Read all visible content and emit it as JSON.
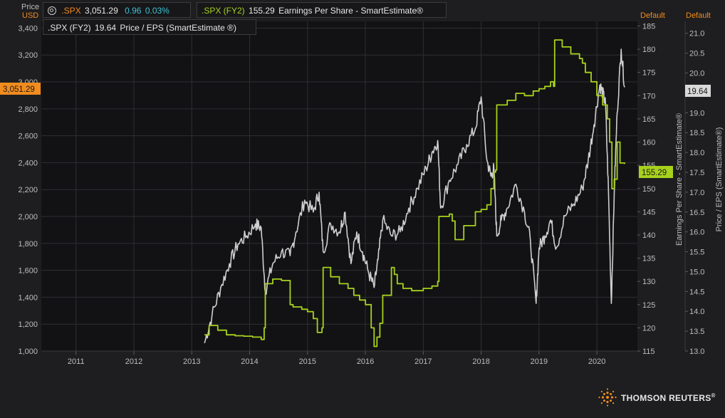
{
  "axis_header": {
    "price_label": "Price",
    "currency": "USD",
    "default_right1": "Default",
    "default_right2": "Default"
  },
  "legend": {
    "spx": {
      "symbol": ".SPX",
      "value": "3,051.29",
      "change": "0.96",
      "change_pct": "0.03%"
    },
    "eps": {
      "symbol": ".SPX (FY2)",
      "value": "155.29",
      "name": "Earnings Per Share - SmartEstimate®"
    },
    "pe": {
      "symbol": ".SPX (FY2)",
      "value": "19.64",
      "name": "Price / EPS (SmartEstimate ®)"
    }
  },
  "badges": {
    "price": "3,051.29",
    "eps": "155.29",
    "pe": "19.64"
  },
  "brand": {
    "name": "THOMSON REUTERS",
    "mark": "®"
  },
  "colors": {
    "background": "#1e1e20",
    "plot_background": "#121214",
    "price_line": "#cfcfcf",
    "eps_line": "#a7d21c",
    "accent_orange": "#f28c1e",
    "change_teal": "#3ec1d3",
    "grid": "#2f2f33"
  },
  "chart_data": {
    "type": "line",
    "title": "",
    "xlabel": "",
    "x_range": [
      2010.4,
      2020.7
    ],
    "x_ticks": [
      "2011",
      "2012",
      "2013",
      "2014",
      "2015",
      "2016",
      "2017",
      "2018",
      "2019",
      "2020"
    ],
    "grid": true,
    "legend_placement": "top-left",
    "axes": {
      "left": {
        "label": "Price",
        "unit": "USD",
        "range": [
          1000,
          3450
        ],
        "ticks": [
          "1,000",
          "1,200",
          "1,400",
          "1,600",
          "1,800",
          "2,000",
          "2,200",
          "2,400",
          "2,600",
          "2,800",
          "3,000",
          "3,200",
          "3,400"
        ]
      },
      "right1": {
        "label": "Earnings Per Share - SmartEstimate®",
        "range": [
          115,
          186
        ],
        "ticks": [
          "115",
          "120",
          "125",
          "130",
          "135",
          "140",
          "145",
          "150",
          "155",
          "160",
          "165",
          "170",
          "175",
          "180",
          "185"
        ]
      },
      "right2": {
        "label": "Price / EPS (SmartEstimate®)",
        "range": [
          13.0,
          21.3
        ],
        "ticks": [
          "13.0",
          "13.5",
          "14.0",
          "14.5",
          "15.0",
          "15.5",
          "16.0",
          "16.5",
          "17.0",
          "17.5",
          "18.0",
          "18.5",
          "19.0",
          "19.5",
          "20.0",
          "20.5",
          "21.0"
        ]
      }
    },
    "series": [
      {
        "name": ".SPX (FY2) Earnings Per Share - SmartEstimate®",
        "axis": "right1",
        "x": [
          2013.22,
          2013.3,
          2013.45,
          2013.6,
          2013.75,
          2013.9,
          2014.05,
          2014.2,
          2014.25,
          2014.27,
          2014.4,
          2014.55,
          2014.7,
          2014.75,
          2014.9,
          2015.0,
          2015.1,
          2015.17,
          2015.25,
          2015.27,
          2015.4,
          2015.55,
          2015.7,
          2015.8,
          2015.9,
          2016.0,
          2016.1,
          2016.15,
          2016.2,
          2016.25,
          2016.3,
          2016.45,
          2016.5,
          2016.55,
          2016.65,
          2016.8,
          2017.0,
          2017.15,
          2017.2,
          2017.25,
          2017.27,
          2017.45,
          2017.5,
          2017.55,
          2017.7,
          2017.9,
          2018.0,
          2018.1,
          2018.17,
          2018.22,
          2018.25,
          2018.27,
          2018.45,
          2018.6,
          2018.75,
          2018.9,
          2019.0,
          2019.1,
          2019.2,
          2019.25,
          2019.27,
          2019.4,
          2019.55,
          2019.7,
          2019.75,
          2019.8,
          2019.9,
          2020.0,
          2020.1,
          2020.18,
          2020.22,
          2020.26,
          2020.3,
          2020.35,
          2020.4,
          2020.48
        ],
        "y": [
          118.5,
          120.5,
          119.5,
          118.5,
          118.3,
          118.2,
          118.0,
          117.5,
          120.0,
          129.5,
          130.5,
          130.2,
          125.0,
          124.5,
          124.0,
          123.5,
          122.0,
          119.0,
          120.0,
          133.0,
          131.0,
          129.5,
          128.5,
          127.0,
          126.0,
          125.0,
          120.0,
          116.0,
          118.0,
          121.0,
          127.0,
          133.0,
          131.5,
          129.5,
          128.5,
          128.0,
          128.5,
          129.0,
          129.0,
          130.0,
          144.0,
          144.5,
          143.0,
          139.0,
          142.0,
          145.0,
          145.5,
          146.5,
          150.0,
          153.5,
          154.0,
          168.0,
          169.0,
          170.5,
          170.0,
          171.0,
          171.5,
          172.0,
          173.0,
          172.0,
          182.0,
          180.5,
          179.0,
          178.0,
          177.0,
          175.0,
          173.0,
          170.0,
          168.0,
          165.0,
          160.0,
          150.0,
          152.0,
          160.0,
          155.5,
          155.29
        ]
      },
      {
        "name": ".SPX (FY2) Price / EPS (SmartEstimate®)",
        "axis": "right2",
        "x": [
          2013.22,
          2013.35,
          2013.5,
          2013.65,
          2013.8,
          2013.95,
          2014.1,
          2014.2,
          2014.27,
          2014.4,
          2014.55,
          2014.7,
          2014.8,
          2014.95,
          2015.1,
          2015.2,
          2015.27,
          2015.4,
          2015.55,
          2015.65,
          2015.75,
          2015.85,
          2015.95,
          2016.05,
          2016.15,
          2016.22,
          2016.3,
          2016.45,
          2016.6,
          2016.75,
          2016.9,
          2017.05,
          2017.15,
          2017.25,
          2017.3,
          2017.45,
          2017.6,
          2017.75,
          2017.9,
          2018.0,
          2018.1,
          2018.17,
          2018.22,
          2018.27,
          2018.35,
          2018.45,
          2018.6,
          2018.75,
          2018.85,
          2018.95,
          2019.0,
          2019.1,
          2019.2,
          2019.3,
          2019.45,
          2019.6,
          2019.75,
          2019.85,
          2019.95,
          2020.05,
          2020.1,
          2020.15,
          2020.2,
          2020.25,
          2020.3,
          2020.35,
          2020.42,
          2020.48
        ],
        "y": [
          13.2,
          13.9,
          14.6,
          15.2,
          15.7,
          15.9,
          16.2,
          16.1,
          14.5,
          15.2,
          15.5,
          15.4,
          16.0,
          16.8,
          16.5,
          17.0,
          15.5,
          16.2,
          16.0,
          16.5,
          15.2,
          16.0,
          15.5,
          15.0,
          14.6,
          15.3,
          16.3,
          15.9,
          16.0,
          16.6,
          17.1,
          17.6,
          18.0,
          18.3,
          16.6,
          17.3,
          17.7,
          18.2,
          18.6,
          19.4,
          17.8,
          17.4,
          17.6,
          15.9,
          16.3,
          16.6,
          17.2,
          16.5,
          15.8,
          14.2,
          15.6,
          15.9,
          16.3,
          15.6,
          16.4,
          16.7,
          17.1,
          17.8,
          18.7,
          19.7,
          19.5,
          19.2,
          17.0,
          14.2,
          17.0,
          19.0,
          20.6,
          19.64
        ]
      }
    ]
  }
}
